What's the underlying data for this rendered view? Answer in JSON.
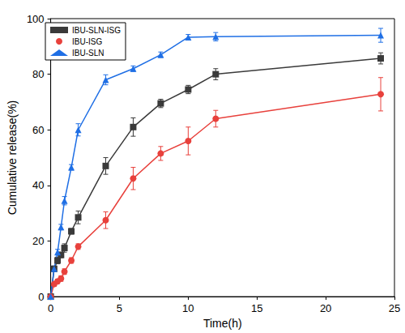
{
  "chart_data": {
    "type": "line",
    "x_label": "Time(h)",
    "y_label": "Cumulative release(%)",
    "x": [
      0,
      0.25,
      0.5,
      0.75,
      1,
      1.5,
      2,
      4,
      6,
      8,
      10,
      12,
      24
    ],
    "xlim": [
      0,
      25
    ],
    "xticks": [
      0,
      5,
      10,
      15,
      20,
      25
    ],
    "ylim": [
      0,
      100
    ],
    "yticks": [
      0,
      20,
      40,
      60,
      80,
      100
    ],
    "grid": false,
    "legend": "upper left",
    "series": [
      {
        "name": "IBU-SLN-ISG",
        "color": "#3a3a3a",
        "marker": "square",
        "values": [
          0,
          10,
          13,
          15,
          17.5,
          23.5,
          28.5,
          47,
          61,
          69.5,
          74.5,
          80,
          85.7
        ],
        "errors": [
          0,
          1,
          1.2,
          1,
          1.5,
          1,
          2.3,
          3,
          3.3,
          1.5,
          1.5,
          2,
          2
        ]
      },
      {
        "name": "IBU-ISG",
        "color": "#e8413c",
        "marker": "circle",
        "values": [
          0,
          4.5,
          5.5,
          6.5,
          9,
          13,
          18,
          27.5,
          42.5,
          51.5,
          56,
          64,
          72.8
        ],
        "errors": [
          0,
          0.8,
          0.8,
          1,
          1,
          1,
          1,
          3,
          4,
          2.5,
          5,
          3,
          6
        ]
      },
      {
        "name": "IBU-SLN",
        "color": "#1f6fe5",
        "marker": "triangle",
        "values": [
          0,
          10,
          16,
          25,
          34.5,
          46.5,
          60,
          78,
          82,
          87,
          93.3,
          93.5,
          94
        ],
        "errors": [
          0,
          1,
          1,
          1,
          1.5,
          1,
          2.2,
          1.8,
          1,
          1,
          1,
          1.5,
          2.5
        ]
      }
    ]
  }
}
